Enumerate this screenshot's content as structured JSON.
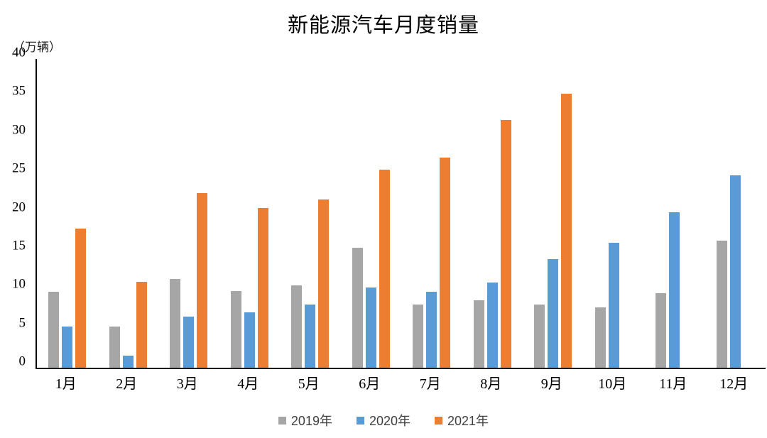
{
  "title": "新能源汽车月度销量",
  "unit_label": "（万辆）",
  "chart_data": {
    "type": "bar",
    "title": "新能源汽车月度销量",
    "ylabel": "（万辆）",
    "xlabel": "",
    "ylim": [
      0,
      40
    ],
    "yticks": [
      0,
      5,
      10,
      15,
      20,
      25,
      30,
      35,
      40
    ],
    "grid": false,
    "legend_position": "bottom",
    "categories": [
      "1月",
      "2月",
      "3月",
      "4月",
      "5月",
      "6月",
      "7月",
      "8月",
      "9月",
      "10月",
      "11月",
      "12月"
    ],
    "series": [
      {
        "name": "2019年",
        "color": "#A6A6A6",
        "values": [
          9.8,
          5.3,
          11.5,
          9.9,
          10.7,
          15.5,
          8.2,
          8.7,
          8.2,
          7.8,
          9.7,
          16.5
        ]
      },
      {
        "name": "2020年",
        "color": "#5B9BD5",
        "values": [
          5.3,
          1.6,
          6.6,
          7.2,
          8.2,
          10.4,
          9.8,
          11.0,
          14.1,
          16.2,
          20.1,
          24.9
        ]
      },
      {
        "name": "2021年",
        "color": "#ED7D31",
        "values": [
          18.0,
          11.1,
          22.6,
          20.7,
          21.8,
          25.7,
          27.2,
          32.1,
          35.5,
          null,
          null,
          null
        ]
      }
    ]
  }
}
